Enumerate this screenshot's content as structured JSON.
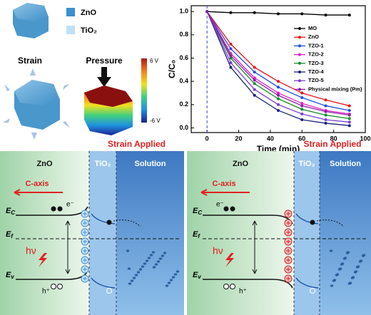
{
  "chart_data": {
    "type": "line",
    "xlabel": "Time (min)",
    "ylabel": "C/C₀",
    "x": [
      0,
      15,
      30,
      45,
      60,
      75,
      90
    ],
    "series": [
      {
        "name": "MO",
        "color": "#000000",
        "values": [
          1.0,
          0.99,
          0.99,
          0.98,
          0.98,
          0.97,
          0.97
        ]
      },
      {
        "name": "ZnO",
        "color": "#e8141b",
        "values": [
          1.0,
          0.72,
          0.52,
          0.4,
          0.3,
          0.24,
          0.19
        ]
      },
      {
        "name": "TZO-1",
        "color": "#1f4fe0",
        "values": [
          1.0,
          0.68,
          0.48,
          0.35,
          0.26,
          0.19,
          0.15
        ]
      },
      {
        "name": "TZO-2",
        "color": "#e020c8",
        "values": [
          1.0,
          0.64,
          0.43,
          0.3,
          0.21,
          0.15,
          0.12
        ]
      },
      {
        "name": "TZO-3",
        "color": "#158a2a",
        "values": [
          1.0,
          0.6,
          0.38,
          0.25,
          0.16,
          0.11,
          0.08
        ]
      },
      {
        "name": "TZO-4",
        "color": "#1a237e",
        "values": [
          1.0,
          0.52,
          0.28,
          0.15,
          0.07,
          0.04,
          0.02
        ]
      },
      {
        "name": "TZO-5",
        "color": "#7a3fd0",
        "values": [
          1.0,
          0.56,
          0.33,
          0.2,
          0.12,
          0.07,
          0.05
        ]
      },
      {
        "name": "Physical mixing (Pm)",
        "color": "#8e1fa8",
        "values": [
          1.0,
          0.62,
          0.41,
          0.28,
          0.19,
          0.14,
          0.11
        ]
      }
    ],
    "xlim": [
      -10,
      100
    ],
    "ylim": [
      -0.04,
      1.05
    ],
    "xticks": [
      0,
      20,
      40,
      60,
      80,
      100
    ],
    "yticks": [
      {
        "value": 0,
        "label": "0.0"
      },
      {
        "value": 0.2,
        "label": "0.2"
      },
      {
        "value": 0.4,
        "label": "0.4"
      },
      {
        "value": 0.6,
        "label": "0.6"
      },
      {
        "value": 0.8,
        "label": "0.8"
      },
      {
        "value": 1,
        "label": "1.0"
      }
    ],
    "vline": 0,
    "legend": "upper right"
  },
  "crystal": {
    "legend": [
      "ZnO",
      "TiO₂"
    ],
    "strain": "Strain",
    "pressure": "Pressure",
    "colorbar": [
      "6 V",
      "-6 V"
    ]
  },
  "panels": [
    {
      "title": "Strain Applied",
      "regions": [
        "ZnO",
        "TiO₂",
        "Solution"
      ],
      "axis": "C-axis",
      "light": "hν",
      "electron": "e⁻",
      "hole": "h⁺",
      "levels": [
        {
          "main": "E",
          "sub": "C"
        },
        {
          "main": "E",
          "sub": "f"
        },
        {
          "main": "E",
          "sub": "v"
        }
      ]
    },
    {
      "title": "Strain Applied",
      "regions": [
        "ZnO",
        "TiO₂",
        "Solution"
      ],
      "axis": "C-axis",
      "light": "hν",
      "electron": "e⁻",
      "hole": "h⁺",
      "levels": [
        {
          "main": "E",
          "sub": "C"
        },
        {
          "main": "E",
          "sub": "f"
        },
        {
          "main": "E",
          "sub": "v"
        }
      ]
    }
  ]
}
